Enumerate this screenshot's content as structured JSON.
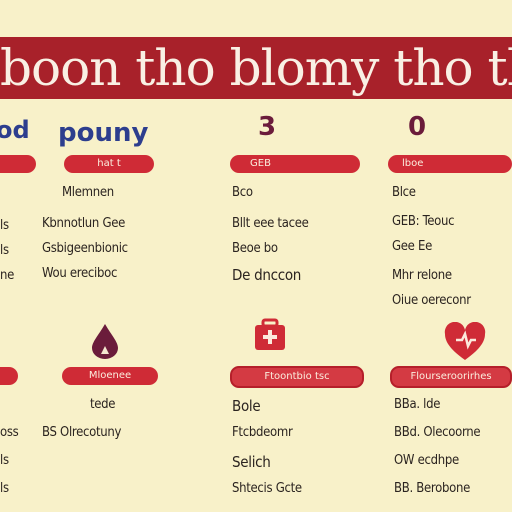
{
  "banner": {
    "title": "boon tho blomy tho the wa"
  },
  "columns": [
    {
      "heading": "od",
      "pill": "",
      "lines": [
        "",
        "ls",
        "ls",
        "ne"
      ]
    },
    {
      "heading": "pouny",
      "pill": "hat t",
      "lines": [
        "Mlemnen",
        "Kbnnotlun Gee",
        "Gsbigeenbionic",
        "Wou ereciboc"
      ]
    },
    {
      "heading": "3",
      "pill": "GEB",
      "lines": [
        "Bco",
        "Bllt eee tacee",
        "Beoe bo",
        "De dnccon"
      ]
    },
    {
      "heading": "0",
      "pill": "lboe",
      "lines": [
        "Blce",
        "GEB: Teouc",
        "Gee Ee",
        "Mhr relone",
        "Oiue  oereconr"
      ]
    }
  ],
  "lower": [
    {
      "pill": "",
      "lines": [
        "",
        "oss",
        "ls",
        "ls"
      ]
    },
    {
      "pill": "Mloenee",
      "lines": [
        "tede",
        "BS Olrecotuny",
        "",
        ""
      ]
    },
    {
      "pill": "Ftoontbio tsc",
      "lines": [
        "Bole",
        "Ftcbdeomr",
        "Selich",
        "Shtecis Gcte"
      ]
    },
    {
      "pill": "Flourseroorirhes",
      "lines": [
        "BBa. lde",
        "BBd.  Olecoorne",
        "OW  ecdhpe",
        "BB. Berobone"
      ]
    }
  ],
  "colors": {
    "accent": "#a8212a",
    "pill": "#cf2b36",
    "bg": "#f8f1c9",
    "blue": "#2d3e8e",
    "plum": "#6b1c3b"
  },
  "icons": [
    "drop-icon",
    "medical-bag-icon",
    "heart-icon"
  ]
}
